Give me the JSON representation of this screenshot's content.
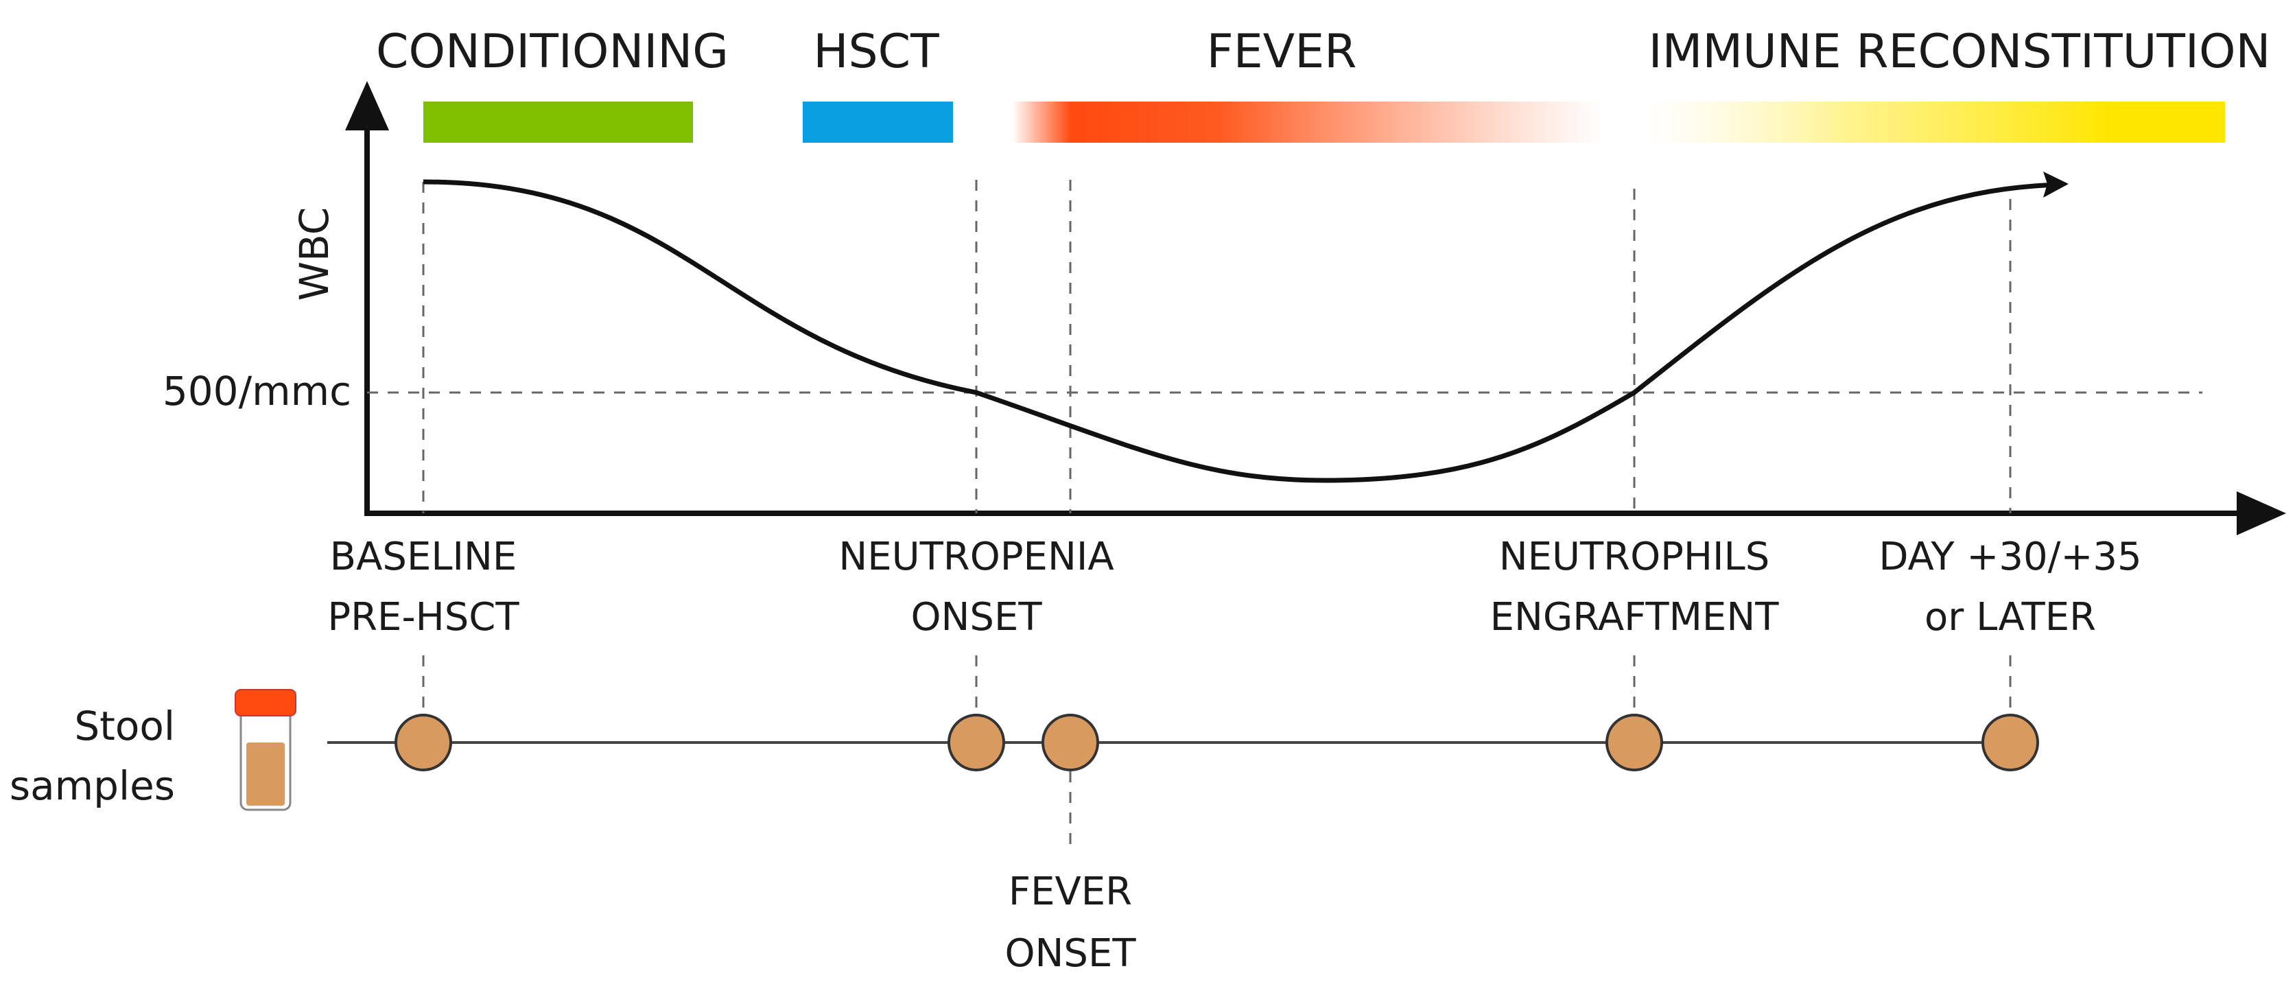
{
  "phases": {
    "conditioning": {
      "label": "CONDITIONING",
      "color": "#7fbf00"
    },
    "hsct": {
      "label": "HSCT",
      "color": "#0aa0e0"
    },
    "fever": {
      "label": "FEVER",
      "color": "#ff4a10"
    },
    "immune": {
      "label": "IMMUNE RECONSTITUTION",
      "color": "#ffe600"
    }
  },
  "axis": {
    "y_label": "WBC",
    "threshold_label": "500/mmc"
  },
  "milestones": {
    "baseline": {
      "line1": "BASELINE",
      "line2": "PRE-HSCT"
    },
    "neutropenia": {
      "line1": "NEUTROPENIA",
      "line2": "ONSET"
    },
    "engraftment": {
      "line1": "NEUTROPHILS",
      "line2": "ENGRAFTMENT"
    },
    "day30": {
      "line1": "DAY +30/+35",
      "line2": "or LATER"
    },
    "fever_onset": {
      "line1": "FEVER",
      "line2": "ONSET"
    }
  },
  "samples": {
    "label_line1": "Stool",
    "label_line2": "samples",
    "dot_color": "#d99a60",
    "container_cap_color": "#ff4a10",
    "container_fill_color": "#d99a60",
    "count": 5
  }
}
